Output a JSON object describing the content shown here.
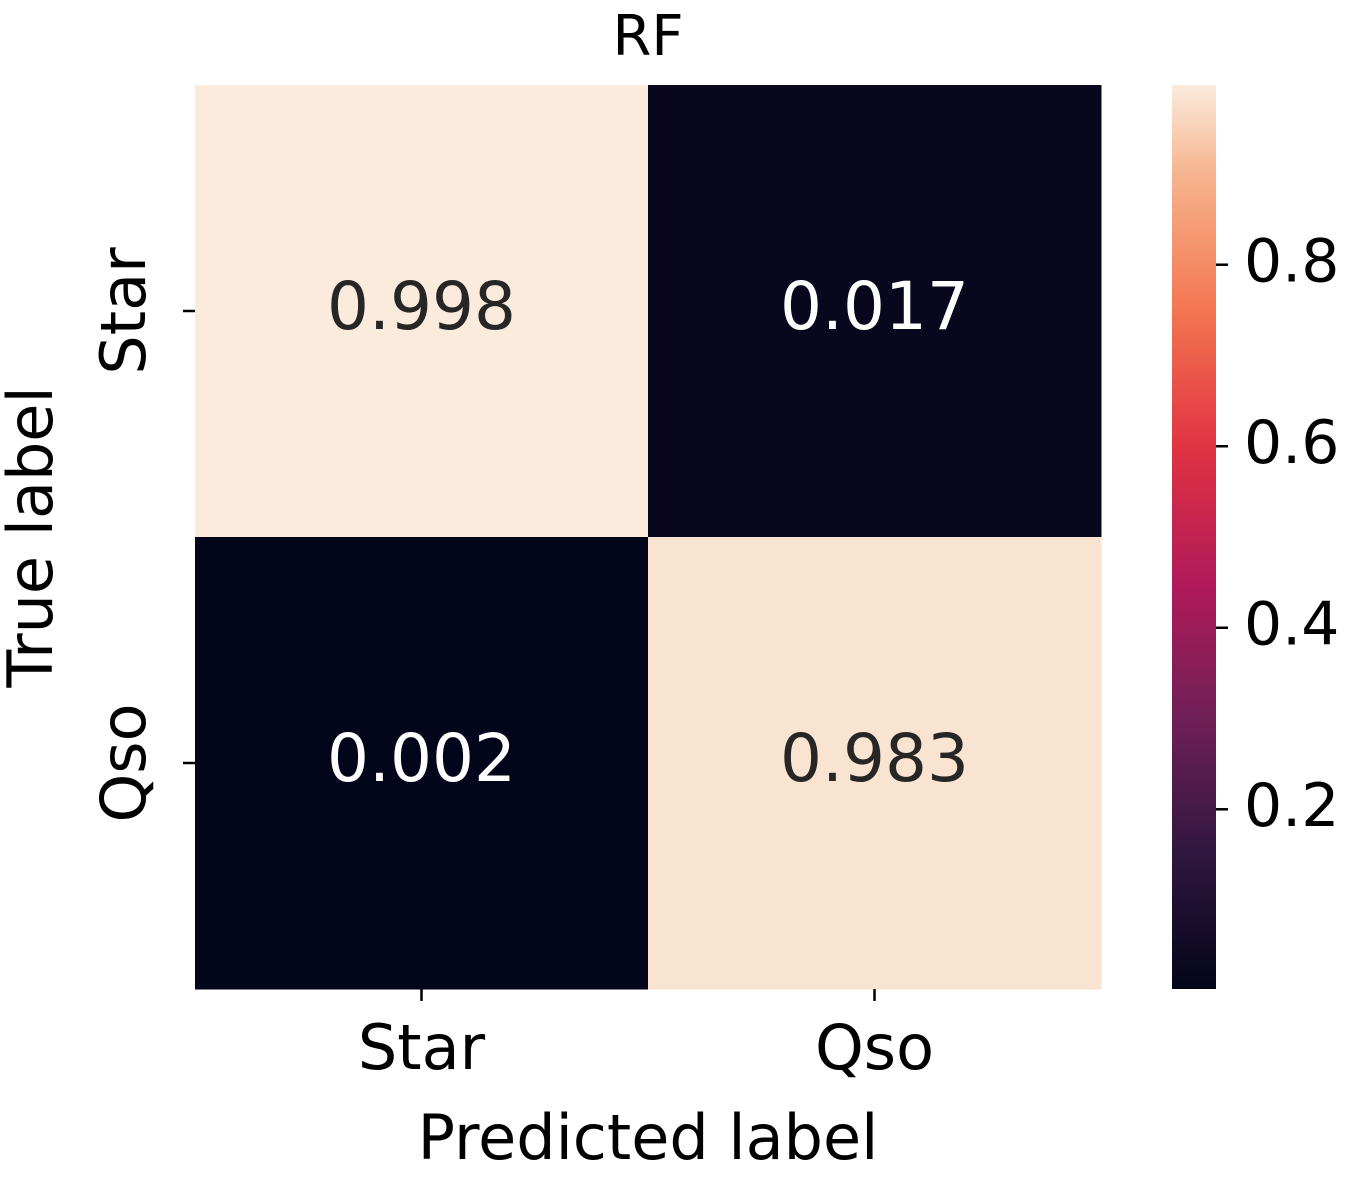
{
  "chart_data": {
    "type": "heatmap",
    "title": "RF",
    "x_label": "Predicted label",
    "y_label": "True label",
    "x_categories": [
      "Star",
      "Qso"
    ],
    "y_categories": [
      "Star",
      "Qso"
    ],
    "values": [
      [
        0.998,
        0.017
      ],
      [
        0.002,
        0.983
      ]
    ],
    "colormap": "rocket",
    "clim": [
      0.002,
      0.998
    ],
    "colorbar_ticks": [
      0.2,
      0.4,
      0.6,
      0.8
    ]
  }
}
